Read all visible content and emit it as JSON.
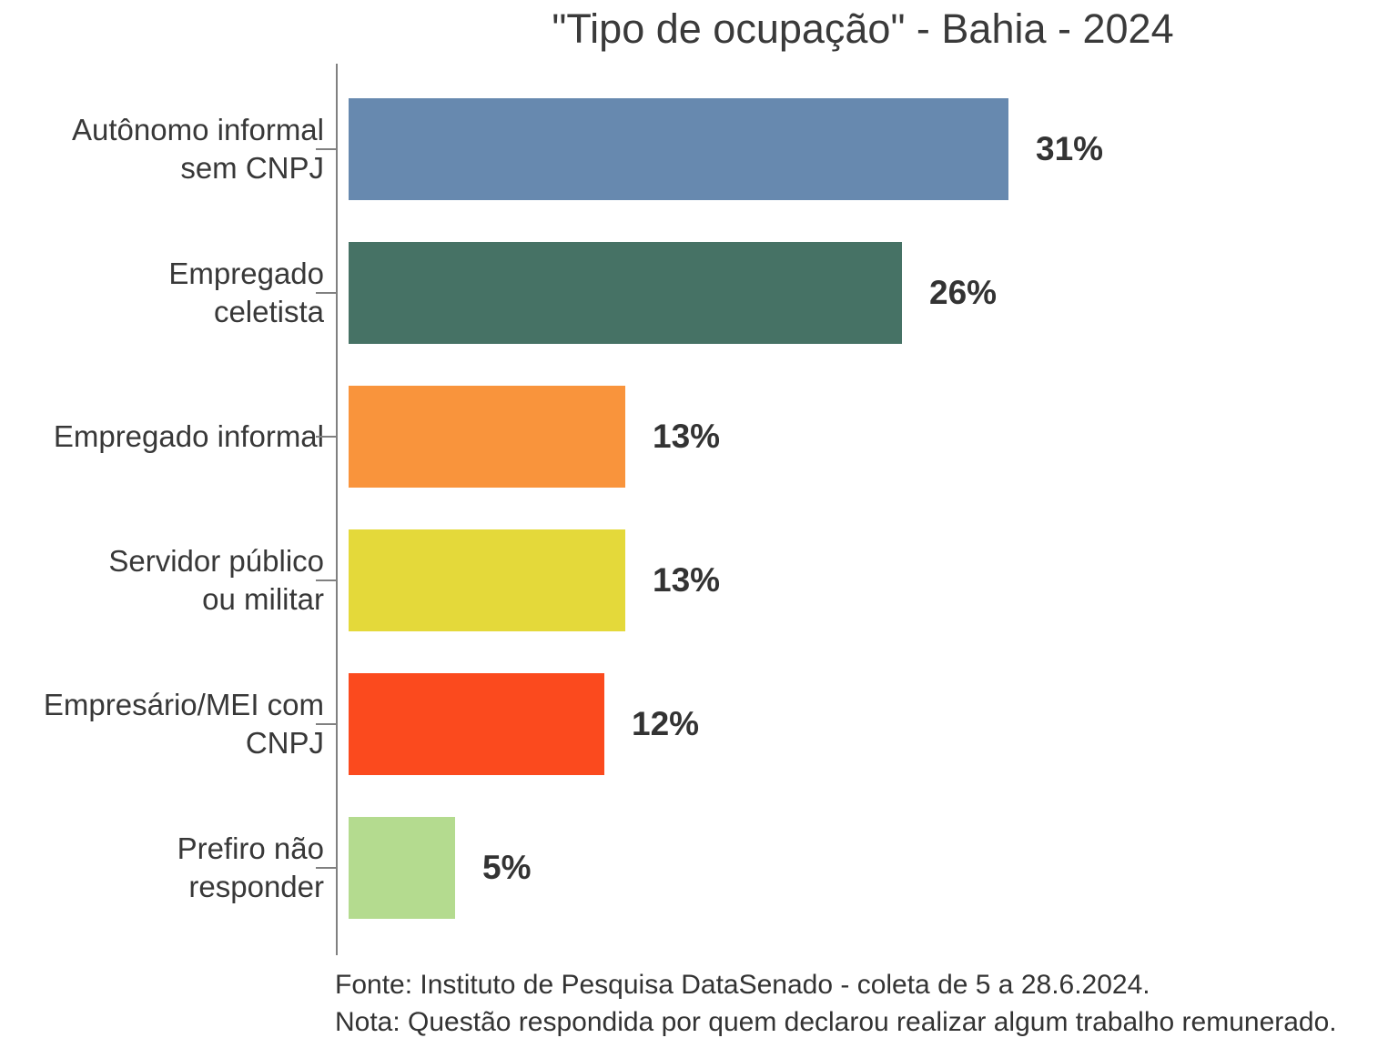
{
  "title": "\"Tipo de ocupação\" - Bahia - 2024",
  "chart_data": {
    "type": "bar",
    "orientation": "horizontal",
    "title": "\"Tipo de ocupação\" - Bahia - 2024",
    "categories": [
      "Autônomo informal\nsem CNPJ",
      "Empregado\nceletista",
      "Empregado informal",
      "Servidor público\nou militar",
      "Empresário/MEI com\nCNPJ",
      "Prefiro não\nresponder"
    ],
    "values": [
      31,
      26,
      13,
      13,
      12,
      5
    ],
    "value_labels": [
      "31%",
      "26%",
      "13%",
      "13%",
      "12%",
      "5%"
    ],
    "colors": [
      "#6789AF",
      "#467265",
      "#F9943C",
      "#E4D93A",
      "#FB4A1E",
      "#B4DB8F"
    ],
    "unit": "%",
    "xlabel": "",
    "ylabel": "",
    "xlim": [
      0,
      33
    ],
    "grid": false,
    "legend": false,
    "axis_color": "#808080"
  },
  "footer": {
    "source": "Fonte: Instituto de Pesquisa DataSenado - coleta de 5 a 28.6.2024.",
    "note": "Nota: Questão respondida por quem declarou realizar algum trabalho remunerado."
  }
}
